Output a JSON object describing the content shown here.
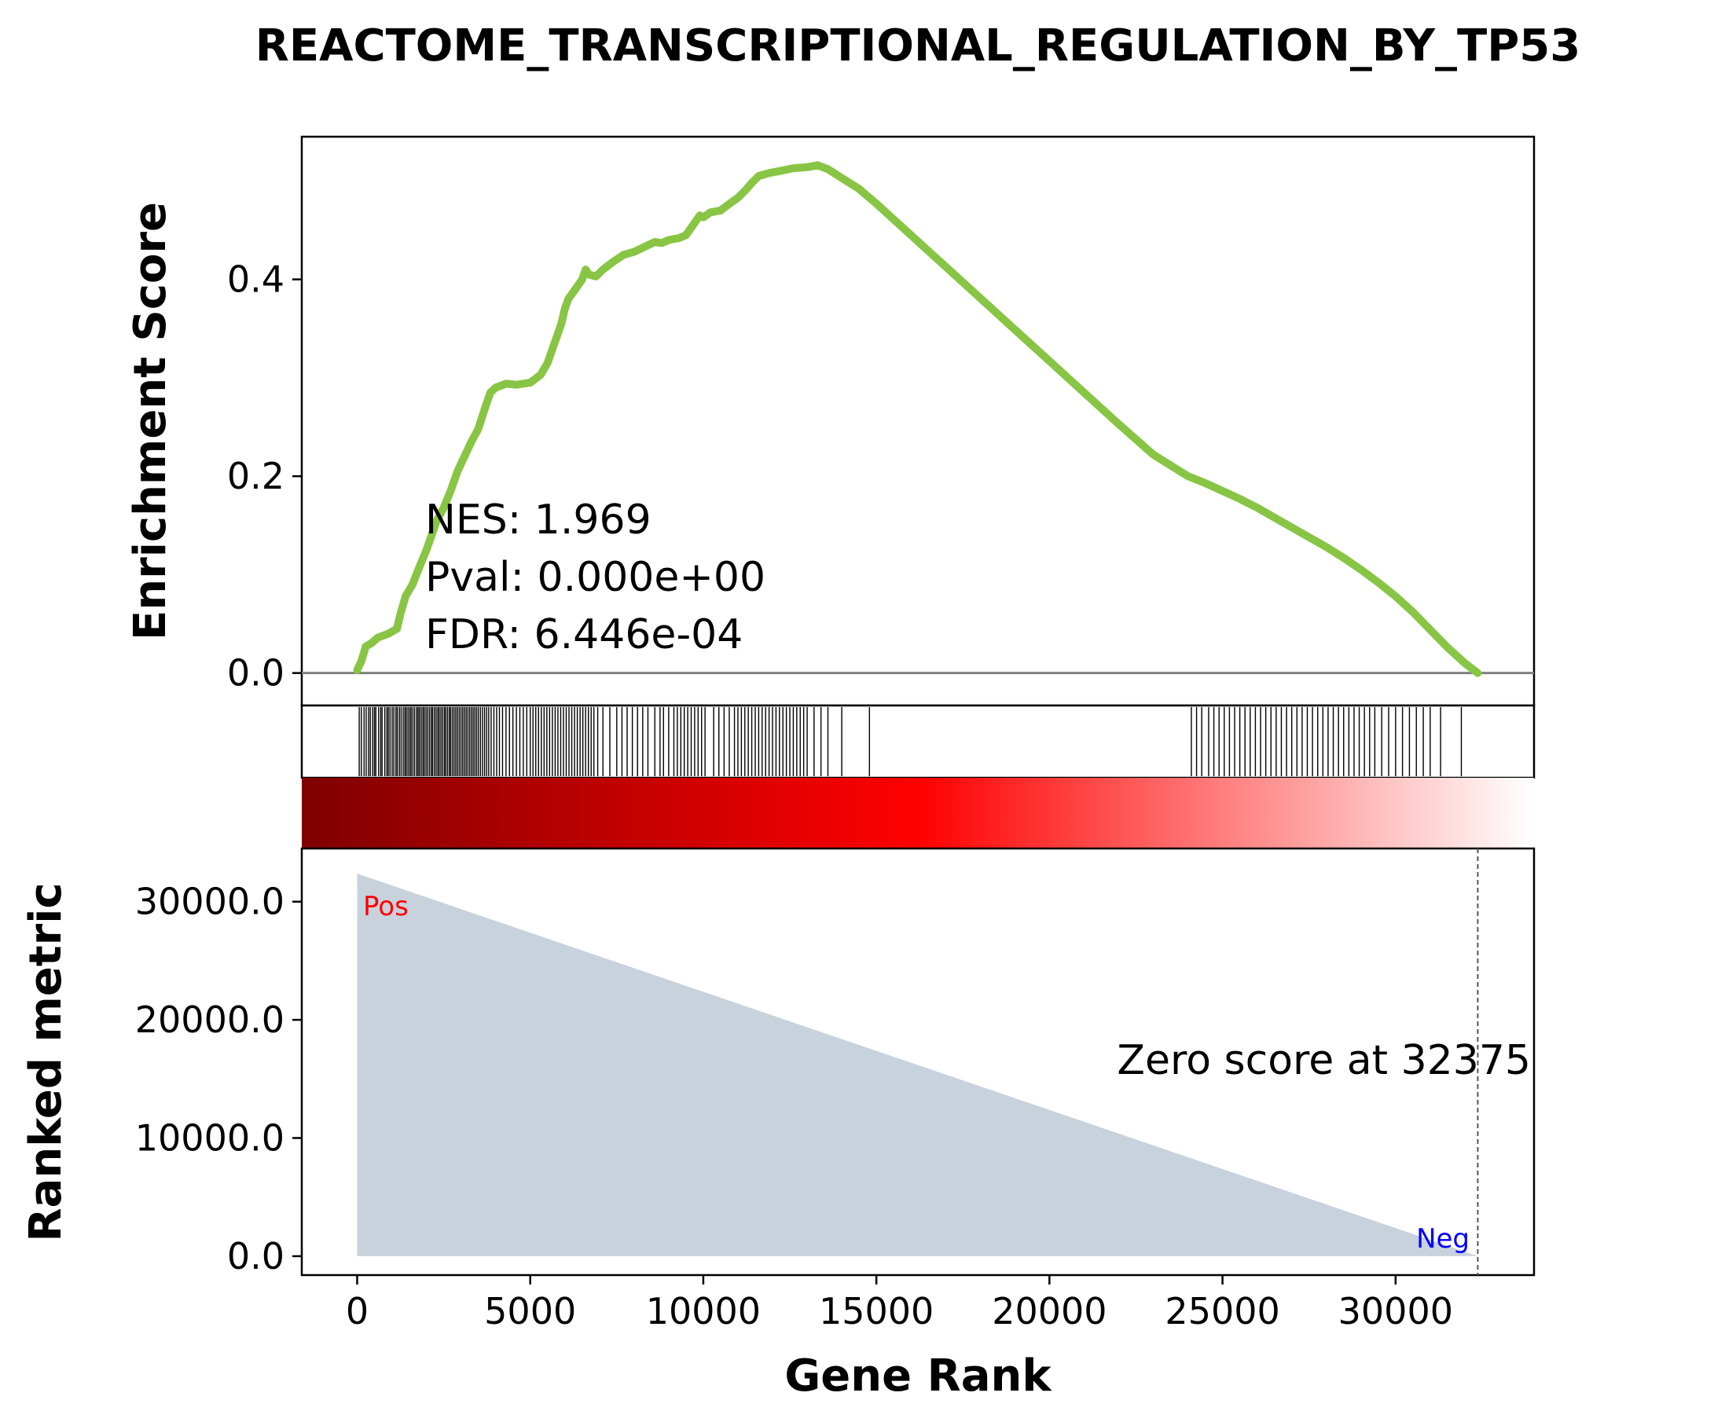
{
  "chart_data": {
    "type": "line",
    "title": "REACTOME_TRANSCRIPTIONAL_REGULATION_BY_TP53",
    "xlabel": "Gene Rank",
    "ylabel_top": "Enrichment Score",
    "ylabel_bottom": "Ranked metric",
    "xlim": [
      -1600,
      34000
    ],
    "es_ylim": [
      -0.033,
      0.545
    ],
    "metric_ylim": [
      -1600,
      34500
    ],
    "x_ticks": [
      0,
      5000,
      10000,
      15000,
      20000,
      25000,
      30000
    ],
    "x_tick_labels": [
      "0",
      "5000",
      "10000",
      "15000",
      "20000",
      "25000",
      "30000"
    ],
    "es_ticks": [
      0.0,
      0.2,
      0.4
    ],
    "es_tick_labels": [
      "0.0",
      "0.2",
      "0.4"
    ],
    "metric_ticks": [
      0,
      10000,
      20000,
      30000
    ],
    "metric_tick_labels": [
      "0.0",
      "10000.0",
      "20000.0",
      "30000.0"
    ],
    "stats": {
      "nes": "NES: 1.969",
      "pval": "Pval: 0.000e+00",
      "fdr": "FDR: 6.446e-04"
    },
    "zero_score_label": "Zero score at 32375",
    "zero_score_rank": 32375,
    "pos_label": "Pos",
    "neg_label": "Neg",
    "enrichment_curve": {
      "x": [
        0,
        120,
        250,
        400,
        600,
        900,
        1150,
        1250,
        1400,
        1600,
        1800,
        2000,
        2150,
        2300,
        2500,
        2700,
        2900,
        3100,
        3300,
        3500,
        3700,
        3850,
        4000,
        4300,
        4600,
        5000,
        5300,
        5500,
        5700,
        5900,
        6000,
        6100,
        6300,
        6500,
        6600,
        6700,
        6900,
        7100,
        7400,
        7700,
        8000,
        8300,
        8600,
        8800,
        9000,
        9300,
        9500,
        9700,
        9900,
        10000,
        10200,
        10500,
        10800,
        11000,
        11200,
        11400,
        11600,
        11900,
        12200,
        12600,
        13000,
        13300,
        13600,
        14000,
        14500,
        15000,
        16000,
        17000,
        18000,
        19000,
        20000,
        21000,
        22000,
        23000,
        24000,
        24500,
        25000,
        25500,
        26000,
        26500,
        27000,
        27500,
        28000,
        28500,
        29000,
        29500,
        30000,
        30500,
        31000,
        31500,
        32000,
        32375
      ],
      "y": [
        0.003,
        0.012,
        0.027,
        0.03,
        0.036,
        0.04,
        0.045,
        0.06,
        0.078,
        0.09,
        0.108,
        0.125,
        0.14,
        0.155,
        0.168,
        0.185,
        0.205,
        0.22,
        0.235,
        0.248,
        0.27,
        0.285,
        0.29,
        0.294,
        0.293,
        0.295,
        0.303,
        0.315,
        0.335,
        0.355,
        0.37,
        0.38,
        0.39,
        0.4,
        0.41,
        0.405,
        0.403,
        0.41,
        0.418,
        0.425,
        0.428,
        0.433,
        0.438,
        0.437,
        0.44,
        0.442,
        0.445,
        0.455,
        0.465,
        0.463,
        0.468,
        0.47,
        0.478,
        0.483,
        0.49,
        0.498,
        0.505,
        0.508,
        0.51,
        0.513,
        0.514,
        0.516,
        0.512,
        0.503,
        0.492,
        0.477,
        0.445,
        0.413,
        0.381,
        0.349,
        0.317,
        0.285,
        0.253,
        0.222,
        0.2,
        0.193,
        0.185,
        0.177,
        0.168,
        0.158,
        0.148,
        0.138,
        0.128,
        0.117,
        0.105,
        0.092,
        0.078,
        0.062,
        0.044,
        0.026,
        0.01,
        0.0
      ]
    },
    "hit_ranks": [
      60,
      120,
      200,
      260,
      330,
      380,
      450,
      500,
      540,
      620,
      680,
      720,
      800,
      860,
      900,
      950,
      1010,
      1060,
      1120,
      1160,
      1220,
      1270,
      1330,
      1380,
      1420,
      1470,
      1520,
      1560,
      1610,
      1660,
      1720,
      1760,
      1800,
      1850,
      1900,
      1940,
      1990,
      2040,
      2090,
      2140,
      2180,
      2230,
      2280,
      2330,
      2370,
      2420,
      2470,
      2520,
      2560,
      2610,
      2660,
      2700,
      2750,
      2800,
      2850,
      2900,
      2950,
      3000,
      3050,
      3100,
      3150,
      3200,
      3250,
      3300,
      3350,
      3400,
      3450,
      3500,
      3560,
      3620,
      3680,
      3740,
      3800,
      3870,
      3950,
      4030,
      4110,
      4200,
      4300,
      4400,
      4500,
      4600,
      4700,
      4800,
      4900,
      5000,
      5080,
      5160,
      5240,
      5320,
      5400,
      5480,
      5560,
      5640,
      5720,
      5800,
      5880,
      5960,
      6040,
      6120,
      6200,
      6280,
      6360,
      6440,
      6520,
      6600,
      6680,
      6760,
      6840,
      6950,
      7100,
      7300,
      7500,
      7650,
      7800,
      7950,
      8100,
      8250,
      8400,
      8600,
      8750,
      8850,
      9000,
      9150,
      9250,
      9350,
      9450,
      9550,
      9650,
      9750,
      9850,
      9950,
      10050,
      10300,
      10450,
      10600,
      10750,
      10900,
      11000,
      11100,
      11200,
      11300,
      11400,
      11500,
      11600,
      11700,
      11800,
      11900,
      12000,
      12100,
      12200,
      12300,
      12400,
      12500,
      12600,
      12700,
      12800,
      12900,
      13000,
      13200,
      13400,
      13600,
      14000,
      14800,
      24100,
      24250,
      24400,
      24600,
      24750,
      24900,
      25050,
      25200,
      25350,
      25500,
      25650,
      25800,
      25950,
      26100,
      26250,
      26400,
      26550,
      26700,
      26850,
      27000,
      27150,
      27300,
      27450,
      27600,
      27750,
      27900,
      28050,
      28200,
      28350,
      28500,
      28650,
      28800,
      28950,
      29100,
      29250,
      29400,
      29600,
      29800,
      30000,
      30200,
      30400,
      30600,
      30800,
      31000,
      31300,
      31900
    ],
    "ranked_metric": {
      "x": [
        0,
        32375
      ],
      "y": [
        32375,
        1
      ]
    },
    "colors": {
      "curve": "#88c544",
      "fill": "#c8d2dc",
      "zero_line": "#808080",
      "pos": "#ff0000",
      "neg": "#0000ff",
      "gradient_start": "#7f0000",
      "gradient_mid": "#ff0000",
      "gradient_end": "#ffffff"
    }
  }
}
